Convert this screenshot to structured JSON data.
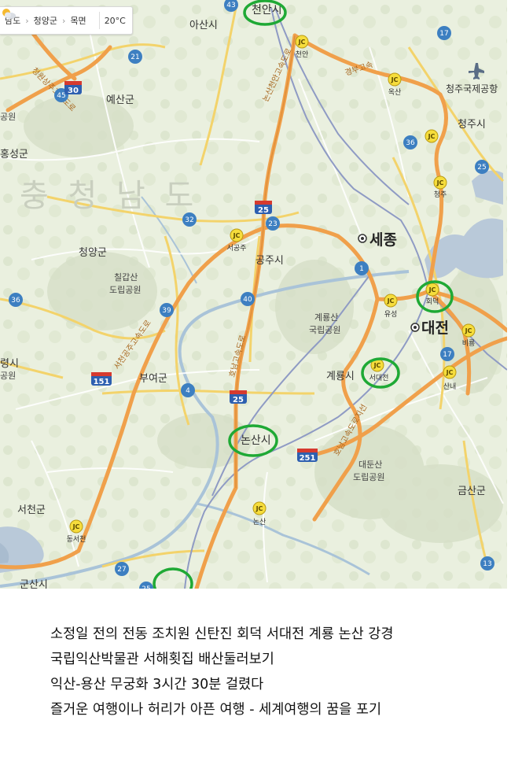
{
  "breadcrumb": {
    "items": [
      "남도",
      "청양군",
      "목면"
    ],
    "temperature": "20°C"
  },
  "map": {
    "region_label": "충 청 남 도",
    "cities": {
      "cheonan": "천안시",
      "asan": "아산시",
      "yesan": "예산군",
      "hongseong": "홍성군",
      "cheongyang": "청양군",
      "gongju": "공주시",
      "sejong": "세종",
      "daejeon": "대전",
      "gyeryong": "계룡시",
      "buyeo": "부여군",
      "nonsan": "논산시",
      "seocheon": "서천군",
      "gunsan": "군산시",
      "cheongju": "청주시",
      "geumsan": "금산군",
      "cheongju_airport": "청주국제공항",
      "boryeong_cut": "령시"
    },
    "parks": {
      "chilgapsan_1": "칠갑산",
      "chilgapsan_2": "도립공원",
      "gyeryongsan_1": "계룡산",
      "gyeryongsan_2": "국립공원",
      "daedunsan_1": "대둔산",
      "daedunsan_2": "도립공원",
      "west_park_1": "공원",
      "west_park_2": "공원"
    },
    "jc_tag": "JC",
    "junctions": {
      "cheonan": "천안",
      "seogongju": "서공주",
      "hoedeok": "회덕",
      "yuseong": "유성",
      "seodaejeon": "서대전",
      "biryong": "비룡",
      "sannae": "산내",
      "okcheon": "옥산",
      "cheongju": "청주",
      "nonsan": "논산",
      "dongseocheon": "동서천"
    },
    "expressways": {
      "nonsan_cheonan": "논산천안고속도로",
      "gyeongbu": "경부고속",
      "seohaean": "서천공주고속도로",
      "honam": "호남고속도로",
      "honam_branch": "호남고속도로지선",
      "cheongwon": "청원상주고속도로"
    },
    "expressway_shields": [
      "25",
      "30",
      "151",
      "251"
    ],
    "route_numbers": [
      "43",
      "17",
      "21",
      "45",
      "36",
      "25",
      "32",
      "23",
      "1",
      "40",
      "39",
      "36",
      "4",
      "17",
      "27",
      "13",
      "25",
      "29"
    ]
  },
  "caption": {
    "line1": "소정일 전의 전동 조치원 신탄진 회덕 서대전 계룡 논산 강경",
    "line2": "국립익산박물관 서해횟집 배산둘러보기",
    "line3": "익산-용산 무궁화 3시간 30분 걸렸다",
    "line4": "즐거운 여행이나 허리가 아픈 여행 - 세계여행의 꿈을 포기"
  },
  "colors": {
    "highlight_circle": "#1fa935",
    "expressway": "#f0a04b",
    "water": "#b9c9d9",
    "rail": "#8f9bc4"
  }
}
